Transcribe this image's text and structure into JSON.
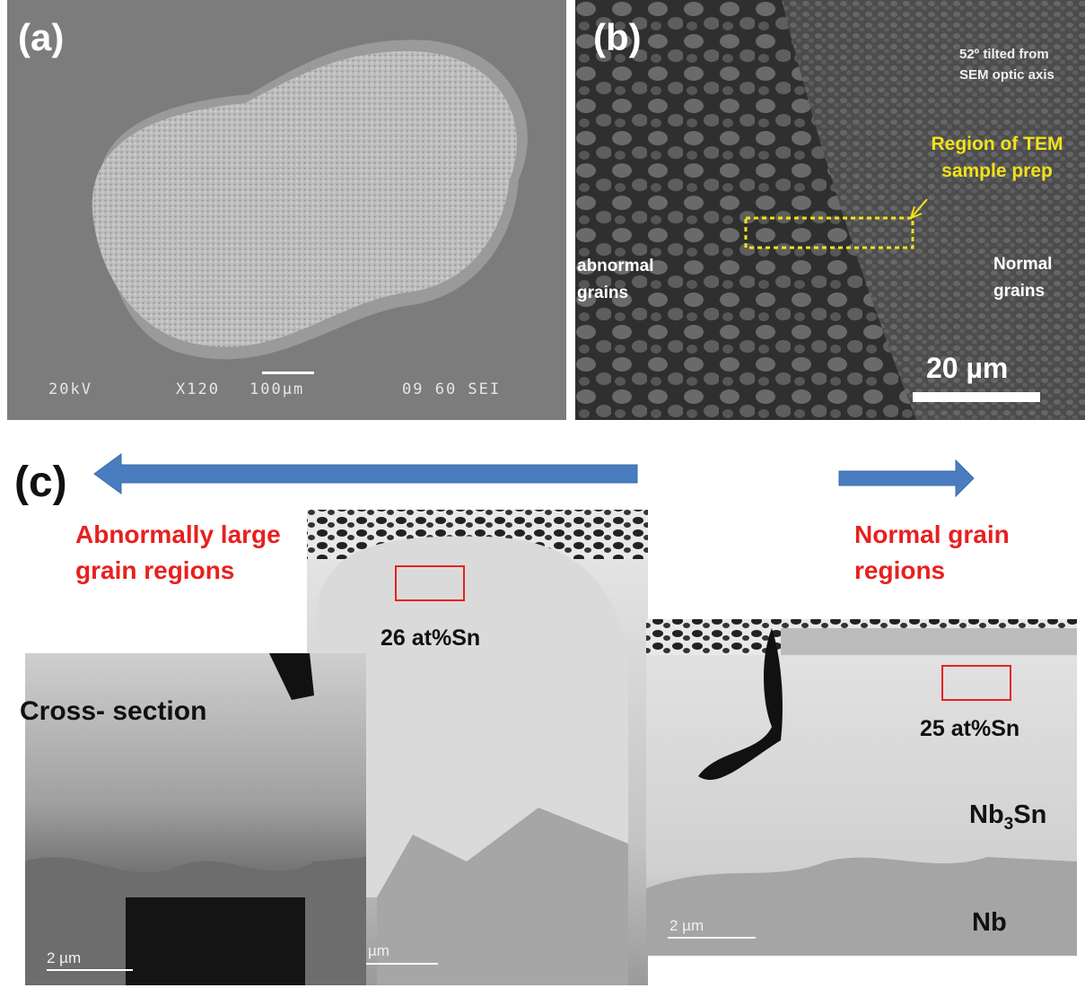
{
  "panel_a": {
    "label": "(a)",
    "voltage": "20kV",
    "magnification": "X120",
    "scale": "100µm",
    "footer_right": "09 60 SEI"
  },
  "panel_b": {
    "label": "(b)",
    "tilt_note_line1": "52º tilted from",
    "tilt_note_line2": "SEM optic axis",
    "region_line1": "Region of TEM",
    "region_line2": "sample prep",
    "abnormal_line1": "abnormal",
    "abnormal_line2": "grains",
    "normal_line1": "Normal",
    "normal_line2": "grains",
    "scale": "20 µm",
    "highlight_color": "#f2e21a"
  },
  "panel_c": {
    "label": "(c)",
    "left_title_line1": "Abnormally large",
    "left_title_line2": "grain regions",
    "right_title_line1": "Normal grain",
    "right_title_line2": "regions",
    "comp_left": "26 at%Sn",
    "comp_right": "25 at%Sn",
    "cross_section": "Cross- section",
    "phase_top": "Nb3Sn",
    "phase_top_base": "Nb",
    "phase_top_sub": "3",
    "phase_top_tail": "Sn",
    "phase_bottom": "Nb",
    "scale_1": "2 µm",
    "scale_2": "µm",
    "scale_3": "2 µm",
    "arrow_color": "#4a7dbf",
    "title_color": "#e8201e",
    "box_color": "#e8201e"
  }
}
